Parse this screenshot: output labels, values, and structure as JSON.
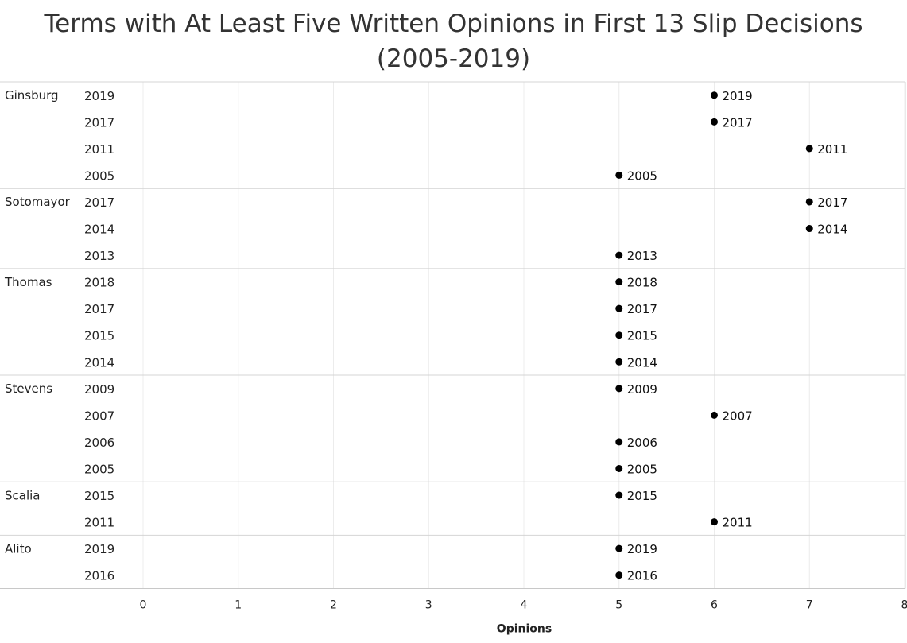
{
  "chart_data": {
    "type": "scatter",
    "title_line1": "Terms with At Least Five Written Opinions in First 13 Slip Decisions",
    "title_line2": "(2005-2019)",
    "xlabel": "Opinions",
    "ylabel": "",
    "xlim": [
      0,
      8
    ],
    "x_ticks": [
      "0",
      "1",
      "2",
      "3",
      "4",
      "5",
      "6",
      "7",
      "8"
    ],
    "grid": "vertical",
    "groups": [
      {
        "justice": "Ginsburg",
        "terms": [
          {
            "term": "2019",
            "opinions": 6
          },
          {
            "term": "2017",
            "opinions": 6
          },
          {
            "term": "2011",
            "opinions": 7
          },
          {
            "term": "2005",
            "opinions": 5
          }
        ]
      },
      {
        "justice": "Sotomayor",
        "terms": [
          {
            "term": "2017",
            "opinions": 7
          },
          {
            "term": "2014",
            "opinions": 7
          },
          {
            "term": "2013",
            "opinions": 5
          }
        ]
      },
      {
        "justice": "Thomas",
        "terms": [
          {
            "term": "2018",
            "opinions": 5
          },
          {
            "term": "2017",
            "opinions": 5
          },
          {
            "term": "2015",
            "opinions": 5
          },
          {
            "term": "2014",
            "opinions": 5
          }
        ]
      },
      {
        "justice": "Stevens",
        "terms": [
          {
            "term": "2009",
            "opinions": 5
          },
          {
            "term": "2007",
            "opinions": 6
          },
          {
            "term": "2006",
            "opinions": 5
          },
          {
            "term": "2005",
            "opinions": 5
          }
        ]
      },
      {
        "justice": "Scalia",
        "terms": [
          {
            "term": "2015",
            "opinions": 5
          },
          {
            "term": "2011",
            "opinions": 6
          }
        ]
      },
      {
        "justice": "Alito",
        "terms": [
          {
            "term": "2019",
            "opinions": 5
          },
          {
            "term": "2016",
            "opinions": 5
          }
        ]
      }
    ]
  }
}
